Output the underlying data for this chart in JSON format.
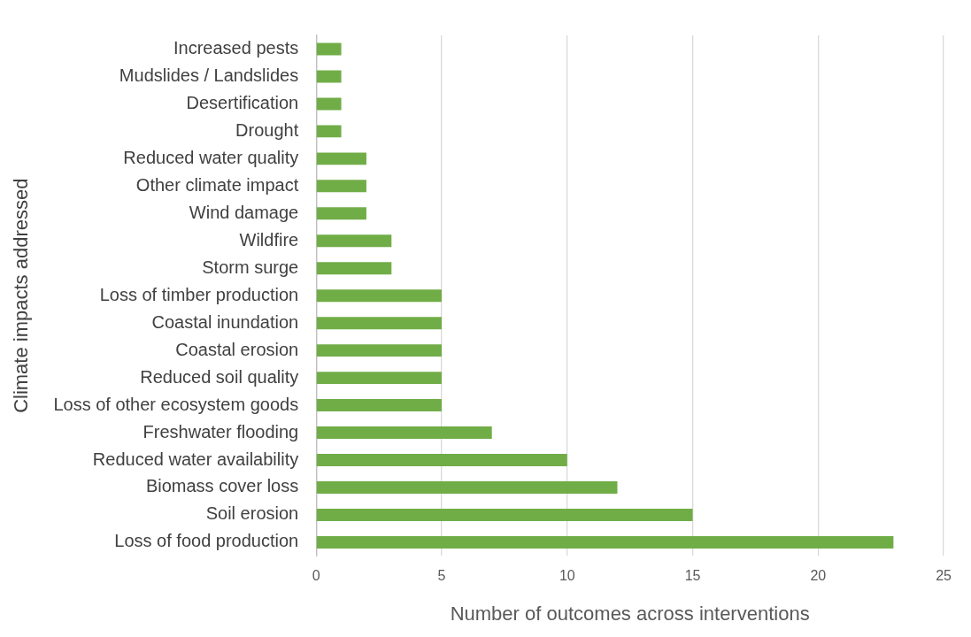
{
  "chart_data": {
    "type": "bar",
    "orientation": "horizontal",
    "categories": [
      "Increased pests",
      "Mudslides / Landslides",
      "Desertification",
      "Drought",
      "Reduced water quality",
      "Other climate impact",
      "Wind damage",
      "Wildfire",
      "Storm surge",
      "Loss of timber production",
      "Coastal inundation",
      "Coastal erosion",
      "Reduced soil quality",
      "Loss of other ecosystem goods",
      "Freshwater flooding",
      "Reduced water availability",
      "Biomass cover loss",
      "Soil erosion",
      "Loss of food production"
    ],
    "values": [
      1,
      1,
      1,
      1,
      2,
      2,
      2,
      3,
      3,
      5,
      5,
      5,
      5,
      5,
      7,
      10,
      12,
      15,
      23
    ],
    "color": "#70ad47",
    "xlim": [
      0,
      25
    ],
    "xticks": [
      0,
      5,
      10,
      15,
      20,
      25
    ],
    "grid": "x",
    "xlabel": "Number of outcomes across interventions",
    "ylabel": "Climate impacts addressed"
  }
}
